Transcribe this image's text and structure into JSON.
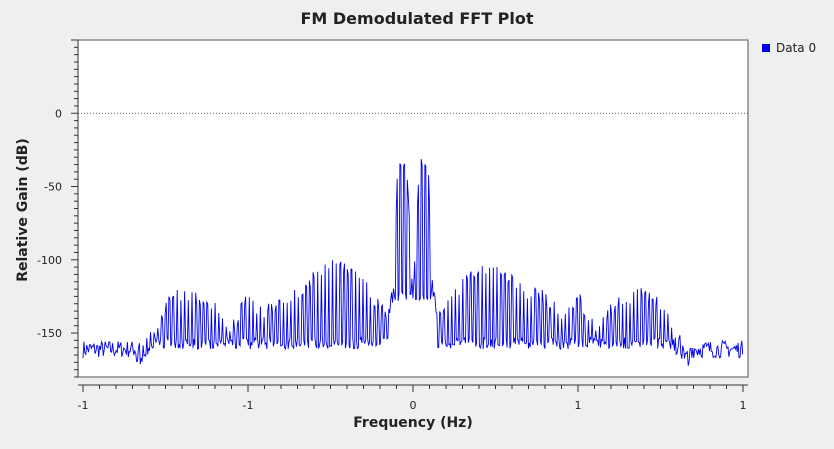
{
  "chart_data": {
    "type": "line",
    "title": "FM Demodulated FFT Plot",
    "xlabel": "Frequency (Hz)",
    "ylabel": "Relative Gain (dB)",
    "xlim": [
      -1,
      1
    ],
    "ylim": [
      -180,
      50
    ],
    "x_ticks": [
      {
        "value": -1,
        "label": "-1"
      },
      {
        "value": -0.5,
        "label": "-1"
      },
      {
        "value": 0,
        "label": "0"
      },
      {
        "value": 0.5,
        "label": "1"
      },
      {
        "value": 1,
        "label": "1"
      }
    ],
    "y_ticks": [
      {
        "value": 0,
        "label": "0"
      },
      {
        "value": -50,
        "label": "-50"
      },
      {
        "value": -100,
        "label": "-100"
      },
      {
        "value": -150,
        "label": "-150"
      }
    ],
    "reference_line": 0,
    "grid": false,
    "legend_position": "top-right",
    "series": [
      {
        "name": "Data 0",
        "color": "#0000ee",
        "envelope": {
          "x": [
            -1.0,
            -0.84,
            -0.8,
            -0.75,
            -0.7,
            -0.65,
            -0.6,
            -0.55,
            -0.5,
            -0.45,
            -0.4,
            -0.35,
            -0.3,
            -0.25,
            -0.2,
            -0.15,
            -0.1,
            -0.075,
            -0.06,
            -0.045,
            -0.035,
            -0.02,
            0.0,
            0.02,
            0.035,
            0.045,
            0.06,
            0.075,
            0.1,
            0.15,
            0.2,
            0.25,
            0.3,
            0.35,
            0.4,
            0.45,
            0.5,
            0.55,
            0.6,
            0.65,
            0.7,
            0.75,
            0.8,
            0.84,
            1.0
          ],
          "y": [
            -161,
            -157,
            -148,
            -127,
            -118,
            -123,
            -128,
            -143,
            -120,
            -133,
            -121,
            -118,
            -108,
            -99,
            -102,
            -112,
            -127,
            -135,
            -123,
            -25,
            -35,
            -27,
            -123,
            -27,
            -35,
            -25,
            -123,
            -135,
            -127,
            -112,
            -102,
            -99,
            -108,
            -118,
            -121,
            -133,
            -120,
            -143,
            -128,
            -123,
            -118,
            -127,
            -148,
            -157,
            -161
          ]
        },
        "noise_floor": -161,
        "spike_spacing": 0.0115
      }
    ]
  }
}
